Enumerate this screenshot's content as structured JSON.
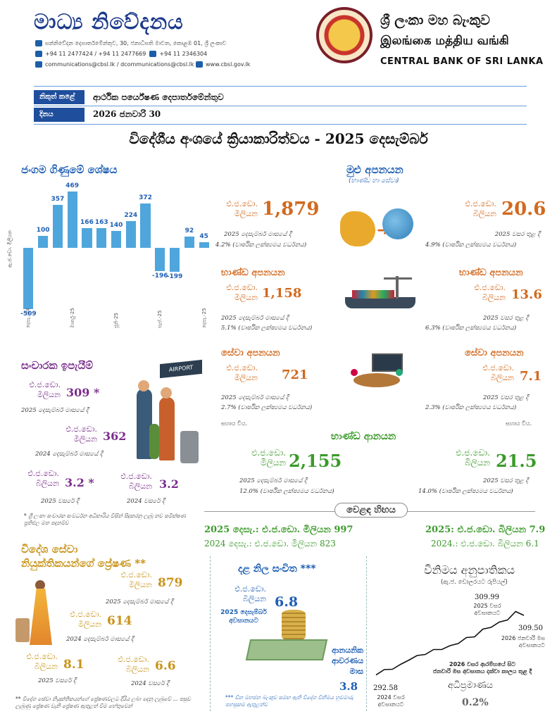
{
  "header": {
    "title": "මාධ්‍ය නිවේදනය",
    "address": "සන්නිවේදන දෙපාර්තමේන්තුව, 30, ජනාධිපති මාවත, කොළඹ 01, ශ්‍රී ලංකාව",
    "phone": "+94 11 2477424 / +94 11 2477669",
    "fax": "+94 11 2346304",
    "email": "communications@cbsl.lk / dcommunications@cbsl.lk",
    "web": "www.cbsl.gov.lk",
    "bank_sinhala": "ශ්‍රී ලංකා මහ බැංකුව",
    "bank_tamil": "இலங்கை மத்திய வங்கி",
    "bank_english": "CENTRAL BANK OF SRI LANKA"
  },
  "info": {
    "issued_by_label": "නිකුත් කළේ",
    "issued_by_value": "ආර්ථික පර්යේෂණ දෙපාර්තමේන්තුව",
    "date_label": "දිනය",
    "date_value": "2026 ජනවාරි 30"
  },
  "main_title": "විදේශීය අංශයේ ක්‍රියාකාරිත්වය - 2025 දෙසැම්බර්",
  "current_account": {
    "title": "ජංගම ගිණුමේ ශේෂය",
    "ylabel": "ඇ.ජ.ඩො. මිලියන",
    "chart_data": {
      "type": "bar",
      "title": "ජංගම ගිණුමේ ශේෂය",
      "ylabel": "ඇ.ජ.ඩො. මිලියන",
      "values": [
        -509,
        100,
        357,
        469,
        166,
        163,
        140,
        224,
        372,
        -196,
        -199,
        92,
        45
      ],
      "x_ticks": [
        "දෙසැ.-24",
        "මාර්තු-25",
        "ජූනි-25",
        "සැප්.-25",
        "දෙසැ.-25"
      ],
      "colors": {
        "bar": "#4fa6dc"
      }
    }
  },
  "exports": {
    "title": "මුළු අපනයන",
    "subtitle": "(භාණ්ඩ හා සේවා)",
    "month_unit": [
      "එ.ජ.ඩො.",
      "මිලියන"
    ],
    "month_value": "1,879",
    "month_note1": "2025 දෙසැම්බර් මාසයේ දී",
    "month_note2": "4.2% (වාර්ෂික ලක්ෂ්‍යමය වර්ධනය)",
    "year_unit": [
      "එ.ජ.ඩො.",
      "බිලියන"
    ],
    "year_value": "20.6",
    "year_note1": "2025 වසර තුළ දී",
    "year_note2": "4.9% (වාර්ෂික ලක්ෂ්‍යමය වර්ධනය)"
  },
  "goods_exports": {
    "title": "භාණ්ඩ අපනයන",
    "month_unit": [
      "එ.ජ.ඩො.",
      "මිලියන"
    ],
    "month_value": "1,158",
    "month_note1": "2025 දෙසැම්බර් මාසයේ දී",
    "month_note2": "5.1% (වාර්ෂික ලක්ෂ්‍යමය වර්ධනය)",
    "year_unit": [
      "එ.ජ.ඩො.",
      "බිලියන"
    ],
    "year_value": "13.6",
    "year_note1": "2025 වසර තුළ දී",
    "year_note2": "6.3% (වාර්ෂික ලක්ෂ්‍යමය වර්ධනය)"
  },
  "service_exports": {
    "title": "සේවා අපනයන",
    "month_unit": [
      "එ.ජ.ඩො.",
      "මිලියන"
    ],
    "month_value": "721",
    "month_note1": "2025 දෙසැම්බර් මාසයේ දී",
    "month_note2": "2.7% (වාර්ෂික ලක්ෂ්‍යමය වර්ධනය)",
    "year_unit": [
      "එ.ජ.ඩො.",
      "බිලියන"
    ],
    "year_value": "7.1",
    "year_note1": "2025 වසර තුළ දී",
    "year_note2": "2.3% (වාර්ෂික ලක්ෂ්‍යමය වර්ධනය)",
    "footnote": "සහාය වීය."
  },
  "tourism": {
    "title": "සංචාරක ඉපැයීම්",
    "u1": [
      "එ.ජ.ඩො.",
      "මිලියන"
    ],
    "v1": "309 *",
    "n1": "2025 දෙසැම්බර් මාසයේ දී",
    "u2": [
      "එ.ජ.ඩො.",
      "මිලියන"
    ],
    "v2": "362",
    "n2": "2024 දෙසැම්බර් මාසයේ දී",
    "u3": [
      "එ.ජ.ඩො.",
      "බිලියන"
    ],
    "v3": "3.2 *",
    "n3": "2025 වසරේ දී",
    "u4": [
      "එ.ජ.ඩො.",
      "බිලියන"
    ],
    "v4": "3.2",
    "n4": "2024 වසරේ දී",
    "footnote": "* ශ්‍රී ලංකා සංචාරක සංවර්ධන අධිකාරිය විසින් සිදුකරනු ලැබූ නව සමීක්ෂණ ප්‍රතිඵල මත පදනම්ව",
    "sign": "AIRPORT"
  },
  "imports": {
    "title": "භාණ්ඩ ආනයන",
    "month_unit": [
      "එ.ජ.ඩො.",
      "මිලියන"
    ],
    "month_value": "2,155",
    "month_note1": "2025 දෙසැම්බර් මාසයේ දී",
    "month_note2": "12.0% (වාර්ෂික ලක්ෂ්‍යමය වර්ධනය)",
    "year_unit": [
      "එ.ජ.ඩො.",
      "බිලියන"
    ],
    "year_value": "21.5",
    "year_note1": "2025 වසර තුළ දී",
    "year_note2": "14.0% (වාර්ෂික ලක්ෂ්‍යමය වර්ධනය)"
  },
  "trade_balance": {
    "title": "වෙළඳ හිඟය",
    "l1": "2025 දෙසැ.: එ.ජ.ඩො. මිලියන 997",
    "l2": "2024 දෙසැ.: එ.ජ.ඩො. මිලියන 823",
    "r1": "2025: එ.ජ.ඩො. බිලියන 7.9",
    "r2": "2024.: එ.ජ.ඩො. බිලියන 6.1"
  },
  "remittances": {
    "title1": "විදේශ සේවා",
    "title2": "නියුක්තිකයන්ගේ ප්‍රේෂණ **",
    "u1": [
      "එ.ජ.ඩො.",
      "මිලියන"
    ],
    "v1": "879",
    "n1": "2025 දෙසැම්බර් මාසයේ දී",
    "u2": [
      "එ.ජ.ඩො.",
      "මිලියන"
    ],
    "v2": "614",
    "n2": "2024 දෙසැම්බර් මාසයේ දී",
    "u3": [
      "එ.ජ.ඩො.",
      "බිලියන"
    ],
    "v3": "8.1",
    "n3": "2025 වසරේ දී",
    "u4": [
      "එ.ජ.ඩො.",
      "බිලියන"
    ],
    "v4": "6.6",
    "n4": "2024 වසරේ දී",
    "footnote": "** විදේශ සේවා නියුක්තිකයන්ගේ ප්‍රේෂණවලට දිරිය ලබා දෙනු ලැබුවේ ... පසුව ලැබුණු ප්‍රේෂණ වැනි ප්‍රේෂණ ඇතුළත් වීම හේතුවෙන්"
  },
  "reserves": {
    "title": "දළ නිල සංචිත ***",
    "unit": [
      "එ.ජ.ඩො.",
      "බිලියන"
    ],
    "value": "6.8",
    "note": [
      "2025 දෙසැම්බර්",
      "අවසානයට"
    ],
    "cover_label": [
      "ආනයනික",
      "ආවරණය",
      "මාස"
    ],
    "cover_value": "3.8",
    "footnote": "*** චීන මහජන බැංකුව සමඟ ඇති විදේශ විනිමය හුවමාරු පහසුකම ඇතුළත්ව"
  },
  "exchange_rate": {
    "title": "විනිමය අනුපාතිකය",
    "subtitle": "(ඇ.ජ. ඩොලරයට රුපියල්)",
    "peak_value": "309.99",
    "peak_note": [
      "2025 වසර",
      "අවසානයට"
    ],
    "end_value": "309.50",
    "end_note": [
      "2026 ජනවාරි මස",
      "අවසානයට"
    ],
    "start_value": "292.58",
    "start_note": [
      "2024 වසර",
      "අවසානයට"
    ],
    "period_note": [
      "2026 වසර ආරම්භයේ සිට",
      "ජනවාරි මස අවසානය දක්වා කාලය තුළ දී"
    ],
    "appreciation_label": "අධිප්‍රමාණය",
    "appreciation_value": "0.2%",
    "chart_data": {
      "type": "line",
      "title": "විනිමය අනුපාතිකය",
      "ylabel": "(ඇ.ජ. ඩොලරයට රුපියල්)",
      "values": [
        292.58,
        293.5,
        294.2,
        295.0,
        296.8,
        297.5,
        298.4,
        299.2,
        299.8,
        300.3,
        301.5,
        302.6,
        303.4,
        305.0,
        306.1,
        307.0,
        308.2,
        309.99,
        309.5
      ],
      "annotations": [
        "292.58",
        "309.99",
        "309.50"
      ]
    }
  }
}
